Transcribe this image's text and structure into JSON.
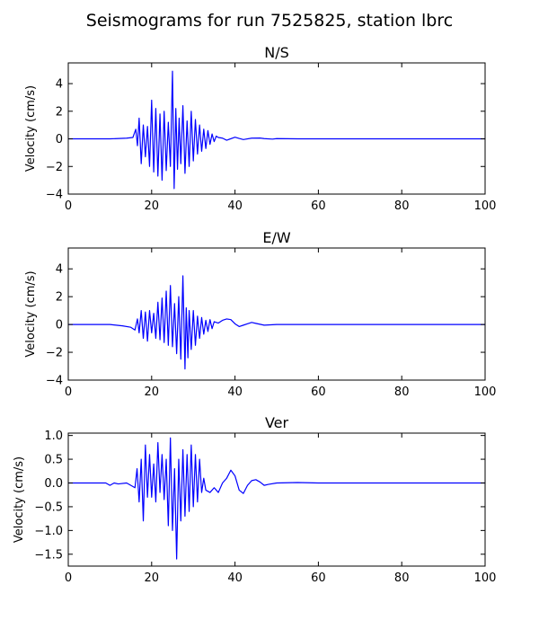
{
  "figure": {
    "title": "Seismograms for run 7525825, station lbrc"
  },
  "line_color": "#0000ff",
  "chart_data": [
    {
      "type": "line",
      "title": "N/S",
      "xlabel": "",
      "ylabel": "Velocity (cm/s)",
      "xlim": [
        0,
        100
      ],
      "ylim": [
        -4,
        5.5
      ],
      "x_ticks": [
        "0",
        "20",
        "40",
        "60",
        "80",
        "100"
      ],
      "y_ticks": [
        "4",
        "2",
        "0",
        "−2",
        "−4"
      ],
      "y_tick_values": [
        4,
        2,
        0,
        -2,
        -4
      ],
      "grid": false,
      "legend": "none",
      "series": [
        {
          "x": [
            0,
            10,
            14,
            15.5,
            16.2,
            16.6,
            17,
            17.5,
            18,
            18.5,
            19,
            19.5,
            20,
            20.5,
            21,
            21.5,
            22,
            22.5,
            23,
            23.5,
            24,
            24.5,
            25,
            25.4,
            25.8,
            26.2,
            26.6,
            27,
            27.5,
            28,
            28.5,
            29,
            29.5,
            30,
            30.5,
            31,
            31.5,
            32,
            32.5,
            33,
            33.5,
            34,
            34.5,
            35,
            35.5,
            36,
            37,
            38,
            40,
            41,
            42,
            44,
            46,
            47,
            49,
            50,
            55,
            60,
            100
          ],
          "y": [
            0,
            0,
            0.05,
            0.1,
            0.7,
            -0.5,
            1.5,
            -1.8,
            1.0,
            -1.3,
            0.9,
            -2.0,
            2.8,
            -2.4,
            2.2,
            -2.7,
            1.8,
            -3.0,
            2.0,
            -2.3,
            1.2,
            -2.0,
            4.9,
            -3.6,
            2.2,
            -2.2,
            1.5,
            -1.8,
            2.4,
            -2.5,
            1.3,
            -2.0,
            2.0,
            -1.6,
            1.4,
            -1.1,
            1.0,
            -0.9,
            0.7,
            -0.7,
            0.6,
            -0.4,
            0.35,
            -0.2,
            0.2,
            0.1,
            0.05,
            -0.1,
            0.12,
            0.03,
            -0.05,
            0.05,
            0.06,
            0.02,
            -0.02,
            0.02,
            0,
            0,
            0
          ]
        }
      ]
    },
    {
      "type": "line",
      "title": "E/W",
      "xlabel": "",
      "ylabel": "Velocity (cm/s)",
      "xlim": [
        0,
        100
      ],
      "ylim": [
        -4,
        5.5
      ],
      "x_ticks": [
        "0",
        "20",
        "40",
        "60",
        "80",
        "100"
      ],
      "y_ticks": [
        "4",
        "2",
        "0",
        "−2",
        "−4"
      ],
      "y_tick_values": [
        4,
        2,
        0,
        -2,
        -4
      ],
      "grid": false,
      "legend": "none",
      "series": [
        {
          "x": [
            0,
            10,
            13,
            15,
            16,
            16.6,
            17,
            17.5,
            18,
            18.5,
            19,
            19.5,
            20,
            20.5,
            21,
            21.5,
            22,
            22.5,
            23,
            23.5,
            24,
            24.5,
            25,
            25.5,
            26,
            26.5,
            27,
            27.5,
            28,
            28.3,
            28.7,
            29,
            29.5,
            30,
            30.5,
            31,
            31.5,
            32,
            32.5,
            33,
            33.5,
            34,
            34.5,
            35,
            36,
            37,
            38,
            39,
            40,
            41,
            42,
            43,
            44,
            45,
            47,
            50,
            60,
            100
          ],
          "y": [
            0,
            0,
            -0.1,
            -0.2,
            -0.4,
            0.4,
            -0.6,
            1.0,
            -1.0,
            0.9,
            -1.2,
            1.0,
            -0.6,
            0.8,
            -1.0,
            1.6,
            -1.1,
            1.9,
            -1.3,
            2.4,
            -1.5,
            2.8,
            -1.6,
            1.5,
            -2.1,
            2.0,
            -2.5,
            3.5,
            -3.2,
            1.2,
            -2.4,
            1.0,
            -1.8,
            1.0,
            -1.5,
            0.6,
            -1.0,
            0.5,
            -0.7,
            0.3,
            -0.5,
            0.35,
            -0.3,
            0.2,
            0.1,
            0.3,
            0.4,
            0.35,
            0.05,
            -0.15,
            -0.05,
            0.05,
            0.15,
            0.08,
            -0.05,
            0,
            0,
            0
          ]
        }
      ]
    },
    {
      "type": "line",
      "title": "Ver",
      "xlabel": "",
      "ylabel": "Velocity (cm/s)",
      "xlim": [
        0,
        100
      ],
      "ylim": [
        -1.75,
        1.05
      ],
      "x_ticks": [
        "0",
        "20",
        "40",
        "60",
        "80",
        "100"
      ],
      "y_ticks": [
        "1.0",
        "0.5",
        "0.0",
        "−0.5",
        "−1.0",
        "−1.5"
      ],
      "y_tick_values": [
        1.0,
        0.5,
        0.0,
        -0.5,
        -1.0,
        -1.5
      ],
      "grid": false,
      "legend": "none",
      "series": [
        {
          "x": [
            0,
            9,
            10,
            11,
            12,
            14,
            15,
            16,
            16.5,
            17,
            17.5,
            18,
            18.5,
            19,
            19.5,
            20,
            20.5,
            21,
            21.5,
            22,
            22.5,
            23,
            23.5,
            24,
            24.5,
            25,
            25.5,
            26,
            26.5,
            27,
            27.5,
            28,
            28.5,
            29,
            29.5,
            30,
            30.5,
            31,
            31.5,
            32,
            32.5,
            33,
            34,
            35,
            36,
            37,
            38,
            39,
            40,
            41,
            42,
            43,
            44,
            45,
            46,
            47,
            48,
            50,
            55,
            60,
            100
          ],
          "y": [
            0,
            0,
            -0.05,
            0,
            -0.02,
            0,
            -0.05,
            -0.1,
            0.3,
            -0.4,
            0.5,
            -0.8,
            0.8,
            -0.3,
            0.6,
            -0.3,
            0.4,
            -0.4,
            0.85,
            -0.2,
            0.6,
            -0.35,
            0.5,
            -0.9,
            0.95,
            -1.0,
            0.3,
            -1.6,
            0.5,
            -0.8,
            0.7,
            -0.7,
            0.6,
            -0.6,
            0.8,
            -0.5,
            0.6,
            -0.4,
            0.5,
            -0.2,
            0.1,
            -0.15,
            -0.2,
            -0.1,
            -0.2,
            0.0,
            0.1,
            0.27,
            0.15,
            -0.15,
            -0.22,
            -0.05,
            0.05,
            0.07,
            0.02,
            -0.05,
            -0.03,
            0.0,
            0.01,
            0,
            0
          ]
        }
      ]
    }
  ]
}
